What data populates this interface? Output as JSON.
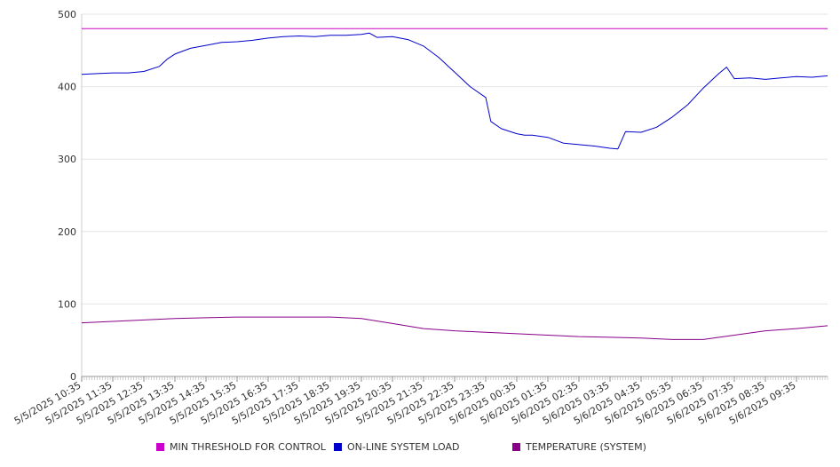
{
  "chart_data": {
    "type": "line",
    "ylim": [
      0,
      500
    ],
    "y_ticks": [
      0,
      100,
      200,
      300,
      400,
      500
    ],
    "x_tick_labels": [
      "5/5/2025 10:35",
      "5/5/2025 11:35",
      "5/5/2025 12:35",
      "5/5/2025 13:35",
      "5/5/2025 14:35",
      "5/5/2025 15:35",
      "5/5/2025 16:35",
      "5/5/2025 17:35",
      "5/5/2025 18:35",
      "5/5/2025 19:35",
      "5/5/2025 20:35",
      "5/5/2025 21:35",
      "5/5/2025 22:35",
      "5/5/2025 23:35",
      "5/6/2025 00:35",
      "5/6/2025 01:35",
      "5/6/2025 02:35",
      "5/6/2025 03:35",
      "5/6/2025 04:35",
      "5/6/2025 05:35",
      "5/6/2025 06:35",
      "5/6/2025 07:35",
      "5/6/2025 08:35",
      "5/6/2025 09:35"
    ],
    "x_time_range": [
      "5/5/2025 10:35",
      "5/6/2025 10:35"
    ],
    "grid": "horizontal",
    "legend_position": "bottom",
    "series": [
      {
        "name": "MIN THRESHOLD FOR CONTROL",
        "color": "#cc00cc",
        "x": [
          "5/5/2025 10:35",
          "5/6/2025 10:35"
        ],
        "y": [
          480,
          480
        ]
      },
      {
        "name": "ON-LINE SYSTEM LOAD",
        "color": "#0000cc",
        "x": [
          "5/5/2025 10:35",
          "5/5/2025 11:05",
          "5/5/2025 11:35",
          "5/5/2025 12:05",
          "5/5/2025 12:35",
          "5/5/2025 13:05",
          "5/5/2025 13:20",
          "5/5/2025 13:35",
          "5/5/2025 14:05",
          "5/5/2025 14:35",
          "5/5/2025 15:05",
          "5/5/2025 15:35",
          "5/5/2025 16:05",
          "5/5/2025 16:35",
          "5/5/2025 17:05",
          "5/5/2025 17:35",
          "5/5/2025 18:05",
          "5/5/2025 18:35",
          "5/5/2025 19:05",
          "5/5/2025 19:35",
          "5/5/2025 19:50",
          "5/5/2025 20:05",
          "5/5/2025 20:35",
          "5/5/2025 21:05",
          "5/5/2025 21:35",
          "5/5/2025 22:05",
          "5/5/2025 22:35",
          "5/5/2025 23:05",
          "5/5/2025 23:35",
          "5/5/2025 23:45",
          "5/6/2025 00:05",
          "5/6/2025 00:35",
          "5/6/2025 00:50",
          "5/6/2025 01:05",
          "5/6/2025 01:35",
          "5/6/2025 02:05",
          "5/6/2025 02:35",
          "5/6/2025 03:05",
          "5/6/2025 03:35",
          "5/6/2025 03:50",
          "5/6/2025 04:05",
          "5/6/2025 04:35",
          "5/6/2025 05:05",
          "5/6/2025 05:35",
          "5/6/2025 06:05",
          "5/6/2025 06:35",
          "5/6/2025 07:05",
          "5/6/2025 07:20",
          "5/6/2025 07:35",
          "5/6/2025 08:05",
          "5/6/2025 08:35",
          "5/6/2025 09:05",
          "5/6/2025 09:35",
          "5/6/2025 10:05",
          "5/6/2025 10:35"
        ],
        "y": [
          417,
          418,
          419,
          419,
          421,
          428,
          438,
          445,
          453,
          457,
          461,
          462,
          464,
          467,
          469,
          470,
          469,
          471,
          471,
          472,
          474,
          468,
          469,
          465,
          456,
          440,
          420,
          400,
          385,
          352,
          342,
          335,
          333,
          333,
          330,
          322,
          320,
          318,
          315,
          314,
          338,
          337,
          344,
          358,
          375,
          398,
          418,
          427,
          411,
          412,
          410,
          412,
          414,
          413,
          415
        ]
      },
      {
        "name": "TEMPERATURE (SYSTEM)",
        "color": "#880088",
        "x": [
          "5/5/2025 10:35",
          "5/5/2025 11:35",
          "5/5/2025 12:35",
          "5/5/2025 13:35",
          "5/5/2025 14:35",
          "5/5/2025 15:35",
          "5/5/2025 16:35",
          "5/5/2025 17:35",
          "5/5/2025 18:35",
          "5/5/2025 19:35",
          "5/5/2025 20:35",
          "5/5/2025 21:35",
          "5/5/2025 22:35",
          "5/5/2025 23:35",
          "5/6/2025 00:35",
          "5/6/2025 01:35",
          "5/6/2025 02:35",
          "5/6/2025 03:35",
          "5/6/2025 04:35",
          "5/6/2025 05:35",
          "5/6/2025 06:35",
          "5/6/2025 07:35",
          "5/6/2025 08:35",
          "5/6/2025 09:35",
          "5/6/2025 10:35"
        ],
        "y": [
          74,
          76,
          78,
          80,
          81,
          82,
          82,
          82,
          82,
          80,
          73,
          66,
          63,
          61,
          59,
          57,
          55,
          54,
          53,
          51,
          51,
          57,
          63,
          66,
          70
        ]
      }
    ]
  }
}
